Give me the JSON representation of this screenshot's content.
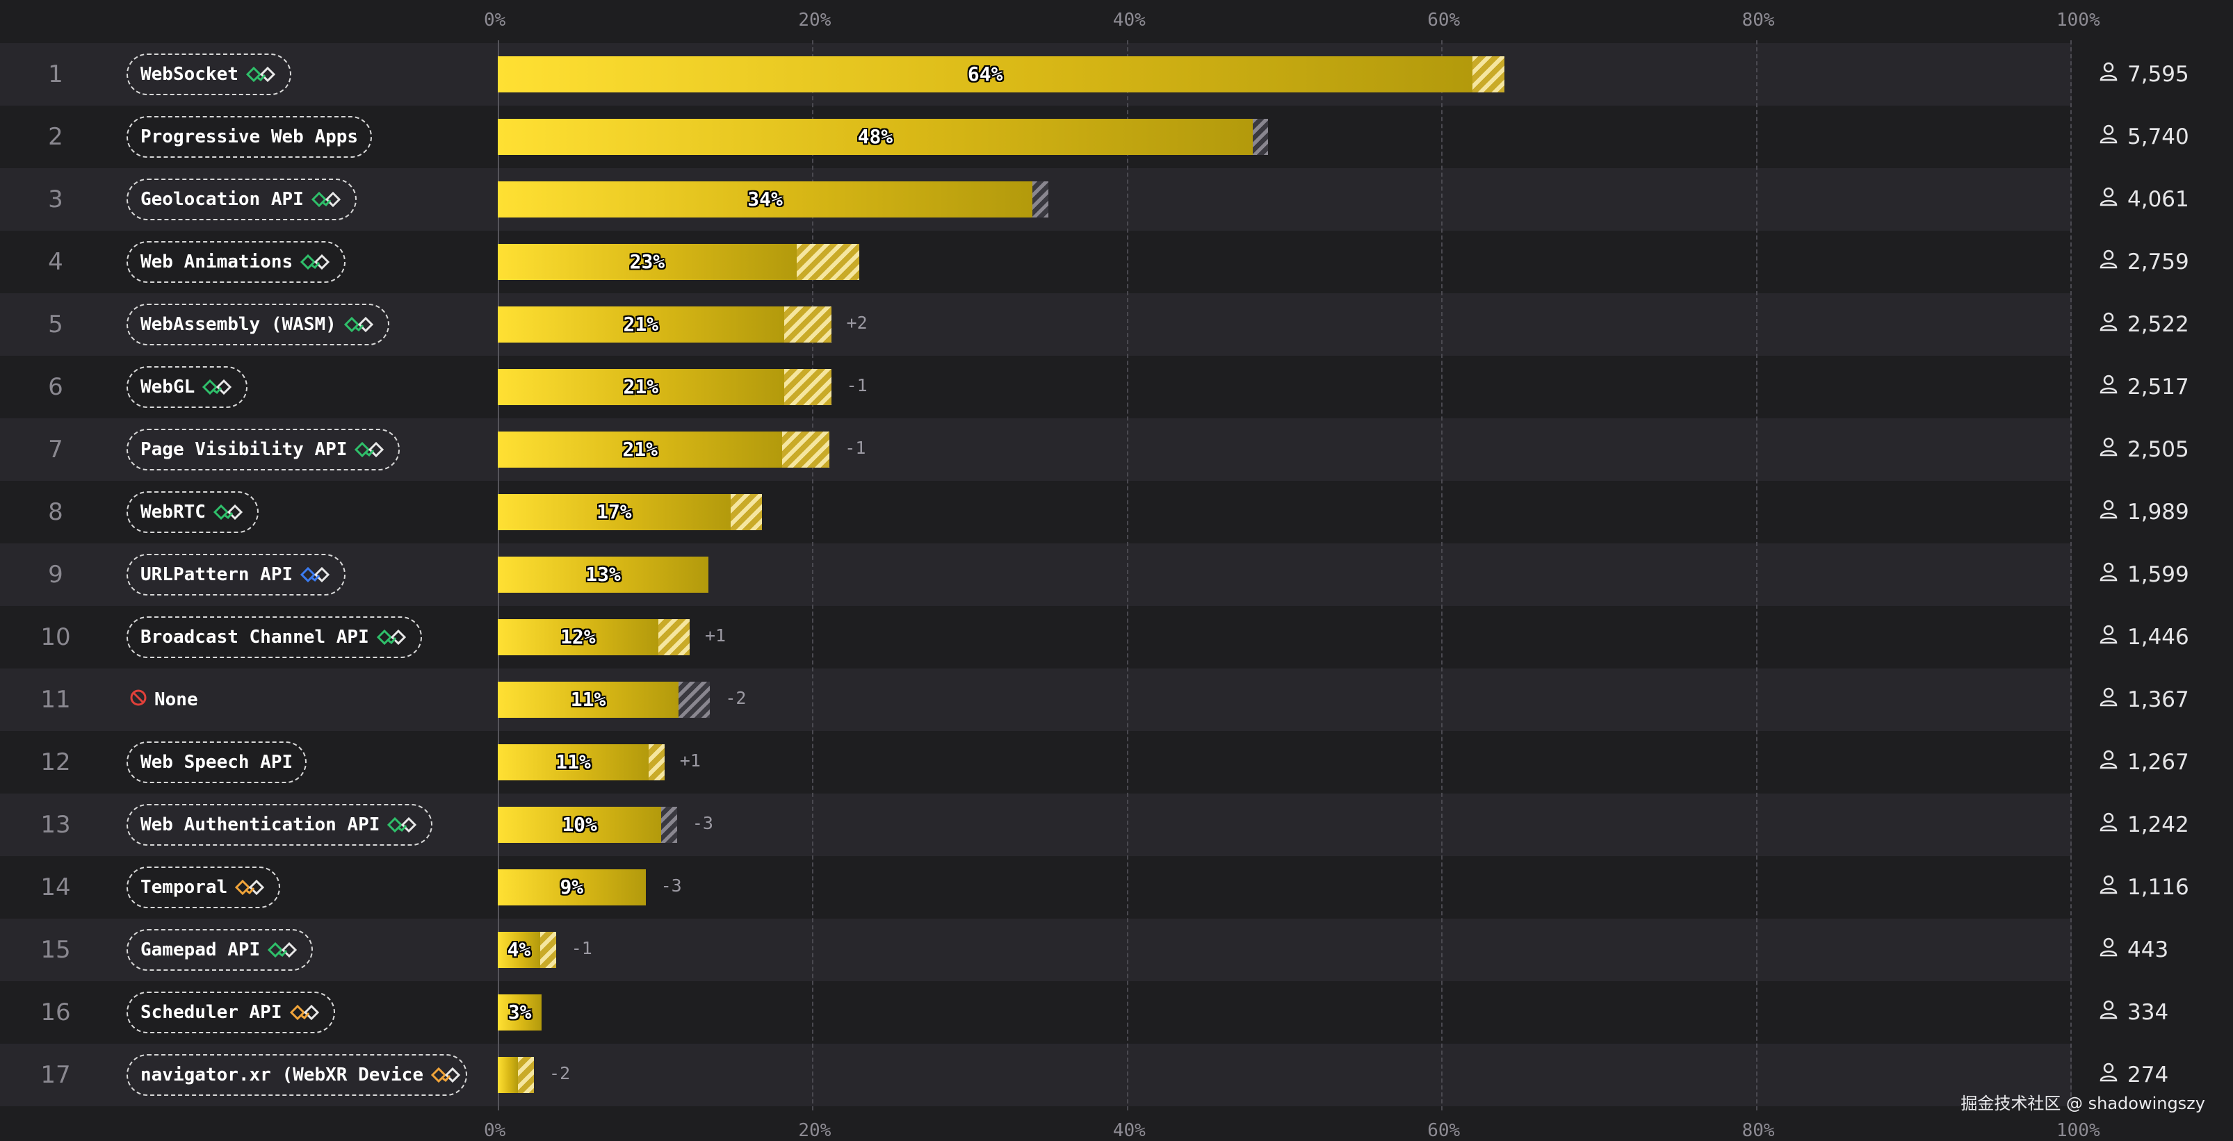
{
  "chart_data": {
    "type": "bar",
    "orientation": "horizontal",
    "xlim": [
      0,
      100
    ],
    "ticks": [
      "0%",
      "20%",
      "40%",
      "60%",
      "80%",
      "100%"
    ],
    "rows": [
      {
        "rank": "1",
        "name": "WebSocket",
        "compat": "green",
        "value": 62,
        "hatch": 2,
        "hatch_style": "light",
        "label": "64%",
        "change": "",
        "count": "7,595"
      },
      {
        "rank": "2",
        "name": "Progressive Web Apps",
        "compat": "",
        "value": 48,
        "hatch": 1,
        "hatch_style": "dark",
        "label": "48%",
        "change": "",
        "count": "5,740"
      },
      {
        "rank": "3",
        "name": "Geolocation API",
        "compat": "green",
        "value": 34,
        "hatch": 1,
        "hatch_style": "dark",
        "label": "34%",
        "change": "",
        "count": "4,061"
      },
      {
        "rank": "4",
        "name": "Web Animations",
        "compat": "green",
        "value": 19,
        "hatch": 4,
        "hatch_style": "light",
        "label": "23%",
        "change": "",
        "count": "2,759"
      },
      {
        "rank": "5",
        "name": "WebAssembly (WASM)",
        "compat": "green",
        "value": 18.2,
        "hatch": 3,
        "hatch_style": "light",
        "label": "21%",
        "change": "+2",
        "count": "2,522"
      },
      {
        "rank": "6",
        "name": "WebGL",
        "compat": "green",
        "value": 18.2,
        "hatch": 3,
        "hatch_style": "light",
        "label": "21%",
        "change": "-1",
        "count": "2,517"
      },
      {
        "rank": "7",
        "name": "Page Visibility API",
        "compat": "green",
        "value": 18.1,
        "hatch": 3,
        "hatch_style": "light",
        "label": "21%",
        "change": "-1",
        "count": "2,505"
      },
      {
        "rank": "8",
        "name": "WebRTC",
        "compat": "green",
        "value": 14.8,
        "hatch": 2,
        "hatch_style": "light",
        "label": "17%",
        "change": "",
        "count": "1,989"
      },
      {
        "rank": "9",
        "name": "URLPattern API",
        "compat": "blue",
        "value": 13.4,
        "hatch": 0,
        "hatch_style": "light",
        "label": "13%",
        "change": "",
        "count": "1,599"
      },
      {
        "rank": "10",
        "name": "Broadcast Channel API",
        "compat": "green",
        "value": 10.2,
        "hatch": 2,
        "hatch_style": "light",
        "label": "12%",
        "change": "+1",
        "count": "1,446"
      },
      {
        "rank": "11",
        "name": "None",
        "compat": "none",
        "value": 11.5,
        "hatch": 2,
        "hatch_style": "dark",
        "label": "11%",
        "change": "-2",
        "count": "1,367"
      },
      {
        "rank": "12",
        "name": "Web Speech API",
        "compat": "",
        "value": 9.6,
        "hatch": 1,
        "hatch_style": "light",
        "label": "11%",
        "change": "+1",
        "count": "1,267"
      },
      {
        "rank": "13",
        "name": "Web Authentication API",
        "compat": "green",
        "value": 10.4,
        "hatch": 1,
        "hatch_style": "dark",
        "label": "10%",
        "change": "-3",
        "count": "1,242"
      },
      {
        "rank": "14",
        "name": "Temporal",
        "compat": "orange",
        "value": 9.4,
        "hatch": 0,
        "hatch_style": "light",
        "label": "9%",
        "change": "-3",
        "count": "1,116"
      },
      {
        "rank": "15",
        "name": "Gamepad API",
        "compat": "green",
        "value": 2.7,
        "hatch": 1,
        "hatch_style": "light",
        "label": "4%",
        "change": "-1",
        "count": "443"
      },
      {
        "rank": "16",
        "name": "Scheduler API",
        "compat": "orange",
        "value": 2.8,
        "hatch": 0,
        "hatch_style": "light",
        "label": "3%",
        "change": "",
        "count": "334"
      },
      {
        "rank": "17",
        "name": "navigator.xr (WebXR Device",
        "compat": "orange",
        "value": 1.3,
        "hatch": 1,
        "hatch_style": "light",
        "label": "",
        "change": "-2",
        "count": "274"
      }
    ]
  },
  "colors": {
    "background": "#1e1e20",
    "band": "#28272c",
    "bar": "#f2cf1d",
    "compat_green": "#2fbf6a",
    "compat_blue": "#3b7bf0",
    "compat_orange": "#f0a43a",
    "none_red": "#e0403a"
  },
  "watermark": "掘金技术社区 @ shadowingszy"
}
